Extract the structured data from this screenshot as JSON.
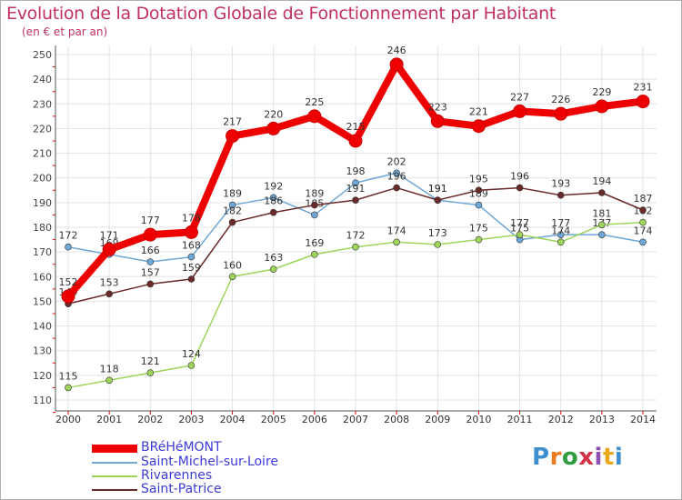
{
  "header": {
    "title": "Evolution de la Dotation Globale de Fonctionnement par Habitant",
    "subtitle": "(en € et par an)"
  },
  "chart_data": {
    "type": "line",
    "title": "Evolution de la Dotation Globale de Fonctionnement par Habitant",
    "subtitle": "(en € et par an)",
    "xlabel": "",
    "ylabel": "",
    "ylim": [
      110,
      250
    ],
    "yticks": [
      110,
      120,
      130,
      140,
      150,
      160,
      170,
      180,
      190,
      200,
      210,
      220,
      230,
      240,
      250
    ],
    "grid": true,
    "x": [
      2000,
      2001,
      2002,
      2003,
      2004,
      2005,
      2006,
      2007,
      2008,
      2009,
      2010,
      2011,
      2012,
      2013,
      2014
    ],
    "series": [
      {
        "name": "Saint-Michel-sur-Loire",
        "color": "#6fa7d6",
        "values": [
          172,
          169,
          166,
          168,
          189,
          192,
          185,
          198,
          202,
          191,
          189,
          175,
          177,
          177,
          174
        ]
      },
      {
        "name": "Rivarennes",
        "color": "#9ed35c",
        "values": [
          115,
          118,
          121,
          124,
          160,
          163,
          169,
          172,
          174,
          173,
          175,
          177,
          174,
          181,
          182
        ]
      },
      {
        "name": "Saint-Patrice",
        "color": "#6b2a2a",
        "values": [
          149,
          153,
          157,
          159,
          182,
          186,
          189,
          191,
          196,
          191,
          195,
          196,
          193,
          194,
          187
        ]
      },
      {
        "name": "BRéHéMONT",
        "color": "#ee0000",
        "values": [
          152,
          171,
          177,
          178,
          217,
          220,
          225,
          215,
          246,
          223,
          221,
          227,
          226,
          229,
          231
        ]
      }
    ],
    "legend_position": "bottom-left"
  },
  "colors": {
    "title": "#c0325f",
    "legend_text": "#3b3bd6",
    "grid": "#e3e3e3",
    "axis": "#555555",
    "tick_mark": "#ee0000"
  },
  "branding": {
    "logo_parts": [
      "P",
      "r",
      "o",
      "x",
      "i",
      "t",
      "i"
    ]
  }
}
